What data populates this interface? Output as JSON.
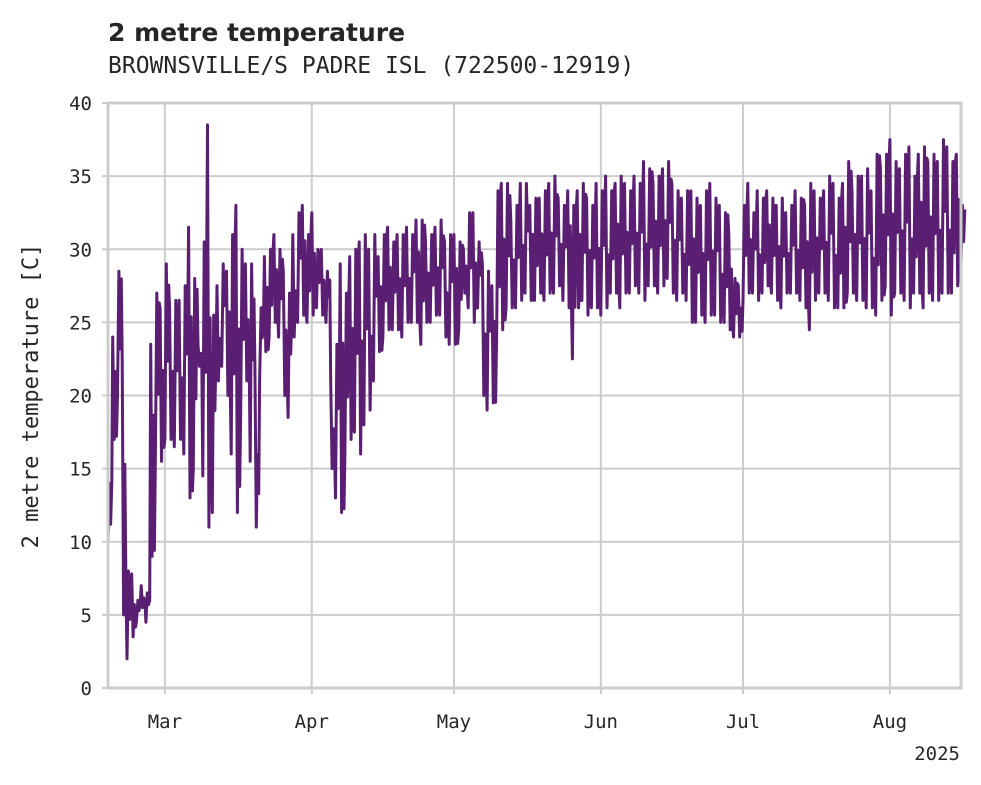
{
  "chart_data": {
    "type": "line",
    "title": "2 metre temperature",
    "subtitle": "BROWNSVILLE/S PADRE ISL (722500-12919)",
    "xlabel": "",
    "ylabel": "2 metre temperature [C]",
    "ylim": [
      0,
      40
    ],
    "xlim": [
      "2025-02-17",
      "2025-08-16"
    ],
    "yticks": [
      "0",
      "5",
      "10",
      "15",
      "20",
      "25",
      "30",
      "35",
      "40"
    ],
    "xticks": [
      {
        "date": "2025-03-01",
        "label": "Mar"
      },
      {
        "date": "2025-04-01",
        "label": "Apr"
      },
      {
        "date": "2025-05-01",
        "label": "May"
      },
      {
        "date": "2025-06-01",
        "label": "Jun"
      },
      {
        "date": "2025-07-01",
        "label": "Jul"
      },
      {
        "date": "2025-08-01",
        "label": "Aug"
      }
    ],
    "year_label": "2025",
    "grid": true,
    "series": [
      {
        "color": "#5a1f73",
        "x": [
          "2025-02-17",
          "2025-02-18",
          "2025-02-19",
          "2025-02-20",
          "2025-02-21",
          "2025-02-22",
          "2025-02-23",
          "2025-02-24",
          "2025-02-25",
          "2025-02-26",
          "2025-02-27",
          "2025-02-28",
          "2025-03-01",
          "2025-03-02",
          "2025-03-03",
          "2025-03-04",
          "2025-03-05",
          "2025-03-06",
          "2025-03-07",
          "2025-03-08",
          "2025-03-09",
          "2025-03-10",
          "2025-03-11",
          "2025-03-12",
          "2025-03-13",
          "2025-03-14",
          "2025-03-15",
          "2025-03-16",
          "2025-03-17",
          "2025-03-18",
          "2025-03-19",
          "2025-03-20",
          "2025-03-21",
          "2025-03-22",
          "2025-03-23",
          "2025-03-24",
          "2025-03-25",
          "2025-03-26",
          "2025-03-27",
          "2025-03-28",
          "2025-03-29",
          "2025-03-30",
          "2025-03-31",
          "2025-04-01",
          "2025-04-02",
          "2025-04-03",
          "2025-04-04",
          "2025-04-05",
          "2025-04-06",
          "2025-04-07",
          "2025-04-08",
          "2025-04-09",
          "2025-04-10",
          "2025-04-11",
          "2025-04-12",
          "2025-04-13",
          "2025-04-14",
          "2025-04-15",
          "2025-04-16",
          "2025-04-17",
          "2025-04-18",
          "2025-04-19",
          "2025-04-20",
          "2025-04-21",
          "2025-04-22",
          "2025-04-23",
          "2025-04-24",
          "2025-04-25",
          "2025-04-26",
          "2025-04-27",
          "2025-04-28",
          "2025-04-29",
          "2025-04-30",
          "2025-05-01",
          "2025-05-02",
          "2025-05-03",
          "2025-05-04",
          "2025-05-05",
          "2025-05-06",
          "2025-05-07",
          "2025-05-08",
          "2025-05-09",
          "2025-05-10",
          "2025-05-11",
          "2025-05-12",
          "2025-05-13",
          "2025-05-14",
          "2025-05-15",
          "2025-05-16",
          "2025-05-17",
          "2025-05-18",
          "2025-05-19",
          "2025-05-20",
          "2025-05-21",
          "2025-05-22",
          "2025-05-23",
          "2025-05-24",
          "2025-05-25",
          "2025-05-26",
          "2025-05-27",
          "2025-05-28",
          "2025-05-29",
          "2025-05-30",
          "2025-05-31",
          "2025-06-01",
          "2025-06-02",
          "2025-06-03",
          "2025-06-04",
          "2025-06-05",
          "2025-06-06",
          "2025-06-07",
          "2025-06-08",
          "2025-06-09",
          "2025-06-10",
          "2025-06-11",
          "2025-06-12",
          "2025-06-13",
          "2025-06-14",
          "2025-06-15",
          "2025-06-16",
          "2025-06-17",
          "2025-06-18",
          "2025-06-19",
          "2025-06-20",
          "2025-06-21",
          "2025-06-22",
          "2025-06-23",
          "2025-06-24",
          "2025-06-25",
          "2025-06-26",
          "2025-06-27",
          "2025-06-28",
          "2025-06-29",
          "2025-06-30",
          "2025-07-01",
          "2025-07-02",
          "2025-07-03",
          "2025-07-04",
          "2025-07-05",
          "2025-07-06",
          "2025-07-07",
          "2025-07-08",
          "2025-07-09",
          "2025-07-10",
          "2025-07-11",
          "2025-07-12",
          "2025-07-13",
          "2025-07-14",
          "2025-07-15",
          "2025-07-16",
          "2025-07-17",
          "2025-07-18",
          "2025-07-19",
          "2025-07-20",
          "2025-07-21",
          "2025-07-22",
          "2025-07-23",
          "2025-07-24",
          "2025-07-25",
          "2025-07-26",
          "2025-07-27",
          "2025-07-28",
          "2025-07-29",
          "2025-07-30",
          "2025-07-31",
          "2025-08-01",
          "2025-08-02",
          "2025-08-03",
          "2025-08-04",
          "2025-08-05",
          "2025-08-06",
          "2025-08-07",
          "2025-08-08",
          "2025-08-09",
          "2025-08-10",
          "2025-08-11",
          "2025-08-12",
          "2025-08-13",
          "2025-08-14",
          "2025-08-15",
          "2025-08-16"
        ],
        "min": [
          10.0,
          17.0,
          20.0,
          5.0,
          2.0,
          3.5,
          4.5,
          5.5,
          4.5,
          9.0,
          16.0,
          15.5,
          17.0,
          17.0,
          16.5,
          17.0,
          16.0,
          13.0,
          15.0,
          22.0,
          14.5,
          11.0,
          12.0,
          21.0,
          22.0,
          20.0,
          16.0,
          12.0,
          19.0,
          21.0,
          15.5,
          11.0,
          21.0,
          23.0,
          24.0,
          25.0,
          24.0,
          20.0,
          18.5,
          24.0,
          25.0,
          25.5,
          25.0,
          25.5,
          26.0,
          25.5,
          25.0,
          15.0,
          13.0,
          12.0,
          16.0,
          17.0,
          17.5,
          16.0,
          18.0,
          19.0,
          21.0,
          23.0,
          24.0,
          24.5,
          24.5,
          24.5,
          24.0,
          25.0,
          25.0,
          25.0,
          23.5,
          25.0,
          25.0,
          25.5,
          25.5,
          24.0,
          23.5,
          23.5,
          24.5,
          27.0,
          26.0,
          25.0,
          26.0,
          20.0,
          19.0,
          19.5,
          24.0,
          24.5,
          26.0,
          26.0,
          26.0,
          26.5,
          27.0,
          26.5,
          26.5,
          27.0,
          26.5,
          27.0,
          27.0,
          27.5,
          26.5,
          26.0,
          22.5,
          26.0,
          26.5,
          25.5,
          26.0,
          26.0,
          25.5,
          26.0,
          27.0,
          27.0,
          26.0,
          27.0,
          27.0,
          27.5,
          27.0,
          26.5,
          27.5,
          27.5,
          27.0,
          27.5,
          28.0,
          27.0,
          26.5,
          27.0,
          26.5,
          25.0,
          25.0,
          25.5,
          25.0,
          25.5,
          25.5,
          25.0,
          25.0,
          24.5,
          24.0,
          24.0,
          26.5,
          27.0,
          27.0,
          26.5,
          27.0,
          27.5,
          27.0,
          26.5,
          26.0,
          27.0,
          27.0,
          27.0,
          26.5,
          26.0,
          24.5,
          26.5,
          27.0,
          27.0,
          26.5,
          26.0,
          26.0,
          26.0,
          27.0,
          27.0,
          26.5,
          26.5,
          26.0,
          26.0,
          25.5,
          26.5,
          27.5,
          25.5,
          27.0,
          27.0,
          26.5,
          26.0,
          27.0,
          27.0,
          26.0,
          27.0,
          26.5,
          26.5,
          27.0,
          27.0,
          27.0,
          27.5,
          29.0,
          29.0
        ],
        "max": [
          14.0,
          24.0,
          28.5,
          22.5,
          8.0,
          7.8,
          6.0,
          7.0,
          6.5,
          23.5,
          27.0,
          26.0,
          29.0,
          26.0,
          26.5,
          26.5,
          27.5,
          31.5,
          28.0,
          23.5,
          30.5,
          38.5,
          25.5,
          27.5,
          29.0,
          28.5,
          31.0,
          33.0,
          30.0,
          29.0,
          29.0,
          22.0,
          26.0,
          29.5,
          30.0,
          31.0,
          30.0,
          28.5,
          27.0,
          31.0,
          32.5,
          33.0,
          31.0,
          32.5,
          30.0,
          30.0,
          28.5,
          21.0,
          23.5,
          29.0,
          27.0,
          29.5,
          30.0,
          30.5,
          31.0,
          30.0,
          31.0,
          29.5,
          31.0,
          31.5,
          30.5,
          31.0,
          31.0,
          31.5,
          31.0,
          32.0,
          32.0,
          30.5,
          31.0,
          31.5,
          32.0,
          30.5,
          31.0,
          31.0,
          30.5,
          30.0,
          32.5,
          32.5,
          30.5,
          29.0,
          28.5,
          27.5,
          34.0,
          34.5,
          34.5,
          32.0,
          33.0,
          34.5,
          34.5,
          33.0,
          33.5,
          33.5,
          34.0,
          34.5,
          35.0,
          33.5,
          33.0,
          34.0,
          33.0,
          34.0,
          34.5,
          33.5,
          33.0,
          34.5,
          34.0,
          35.0,
          34.0,
          34.5,
          35.0,
          34.5,
          34.0,
          35.0,
          34.5,
          36.0,
          35.5,
          34.5,
          35.0,
          35.5,
          36.0,
          34.5,
          34.0,
          33.5,
          34.0,
          34.0,
          33.5,
          33.0,
          34.0,
          34.5,
          33.5,
          33.0,
          32.5,
          31.0,
          28.0,
          27.5,
          33.0,
          34.5,
          32.5,
          34.0,
          33.5,
          34.0,
          33.5,
          33.0,
          33.5,
          32.5,
          33.0,
          34.0,
          33.5,
          33.0,
          34.5,
          34.0,
          33.5,
          34.0,
          35.0,
          34.5,
          33.5,
          34.5,
          36.0,
          34.0,
          35.0,
          35.0,
          35.5,
          34.0,
          36.5,
          35.5,
          36.5,
          37.5,
          36.0,
          35.5,
          36.5,
          37.0,
          35.0,
          36.5,
          37.0,
          36.0,
          36.5,
          36.0,
          37.5,
          37.0,
          36.0,
          36.5,
          33.0,
          29.5
        ]
      }
    ]
  }
}
